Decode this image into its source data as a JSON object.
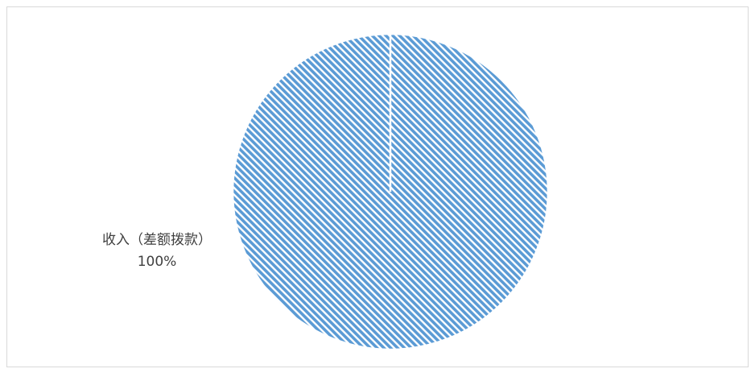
{
  "chart_data": {
    "type": "pie",
    "categories": [
      "收入（差额拨款）"
    ],
    "values": [
      100
    ],
    "value_labels": [
      "100%"
    ],
    "colors": [
      "#5b9bd5"
    ],
    "pattern": "diagonal-hatch"
  }
}
